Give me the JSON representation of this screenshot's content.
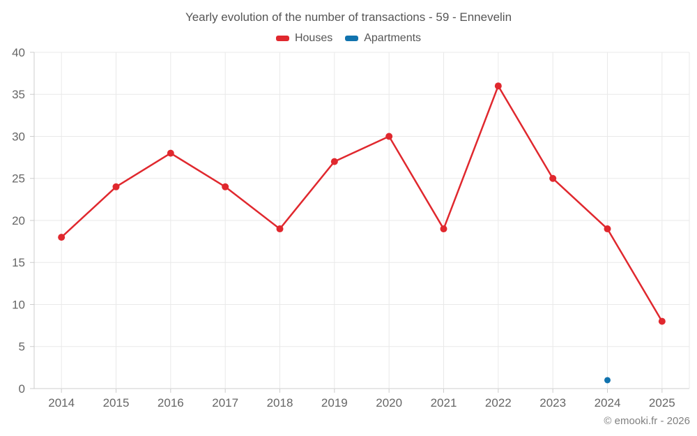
{
  "title": "Yearly evolution of the number of transactions - 59 - Ennevelin",
  "legend": {
    "items": [
      {
        "label": "Houses",
        "color": "#e0282e"
      },
      {
        "label": "Apartments",
        "color": "#1173ae"
      }
    ]
  },
  "copyright": "© emooki.fr - 2026",
  "colors": {
    "grid": "#e9e9e9",
    "axis": "#cccccc",
    "tick_text": "#666666",
    "title_text": "#555555"
  },
  "chart_data": {
    "type": "line",
    "title": "Yearly evolution of the number of transactions - 59 - Ennevelin",
    "categories": [
      "2014",
      "2015",
      "2016",
      "2017",
      "2018",
      "2019",
      "2020",
      "2021",
      "2022",
      "2023",
      "2024",
      "2025"
    ],
    "series": [
      {
        "name": "Houses",
        "color": "#e0282e",
        "values": [
          18,
          24,
          28,
          24,
          19,
          27,
          30,
          19,
          36,
          25,
          19,
          8
        ]
      },
      {
        "name": "Apartments",
        "color": "#1173ae",
        "values": [
          null,
          null,
          null,
          null,
          null,
          null,
          null,
          null,
          null,
          null,
          1,
          null
        ]
      }
    ],
    "xlabel": "",
    "ylabel": "",
    "ylim": [
      0,
      40
    ],
    "yticks": [
      0,
      5,
      10,
      15,
      20,
      25,
      30,
      35,
      40
    ],
    "grid": true,
    "legend_position": "top"
  }
}
